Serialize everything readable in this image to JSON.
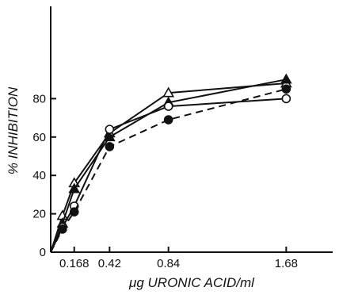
{
  "chart_data": {
    "type": "line",
    "xlabel": "μg URONIC ACID/ml",
    "ylabel": "% INHIBITION",
    "xlim": [
      0,
      1.92
    ],
    "ylim": [
      0,
      100
    ],
    "x_ticks": [
      0.168,
      0.42,
      0.84,
      1.68
    ],
    "x_tick_labels": [
      "0.168",
      "0.42",
      "0.84",
      "1.68"
    ],
    "y_ticks": [
      0,
      20,
      40,
      60,
      80
    ],
    "y_tick_labels": [
      "0",
      "20",
      "40",
      "60",
      "80"
    ],
    "grid": false,
    "series": [
      {
        "marker": "open-triangle",
        "line": "solid",
        "x": [
          0,
          0.084,
          0.168,
          0.42,
          0.84,
          1.68
        ],
        "y": [
          0,
          19,
          36,
          62,
          83,
          88
        ]
      },
      {
        "marker": "filled-triangle",
        "line": "solid",
        "x": [
          0,
          0.084,
          0.168,
          0.42,
          0.84,
          1.68
        ],
        "y": [
          0,
          15,
          33,
          60,
          78,
          90
        ]
      },
      {
        "marker": "open-circle",
        "line": "solid",
        "x": [
          0,
          0.084,
          0.168,
          0.42,
          0.84,
          1.68
        ],
        "y": [
          0,
          13,
          24,
          64,
          76,
          80
        ]
      },
      {
        "marker": "filled-circle",
        "line": "dashed",
        "x": [
          0,
          0.084,
          0.168,
          0.42,
          0.84,
          1.68
        ],
        "y": [
          0,
          12,
          21,
          55,
          69,
          85
        ]
      }
    ]
  }
}
